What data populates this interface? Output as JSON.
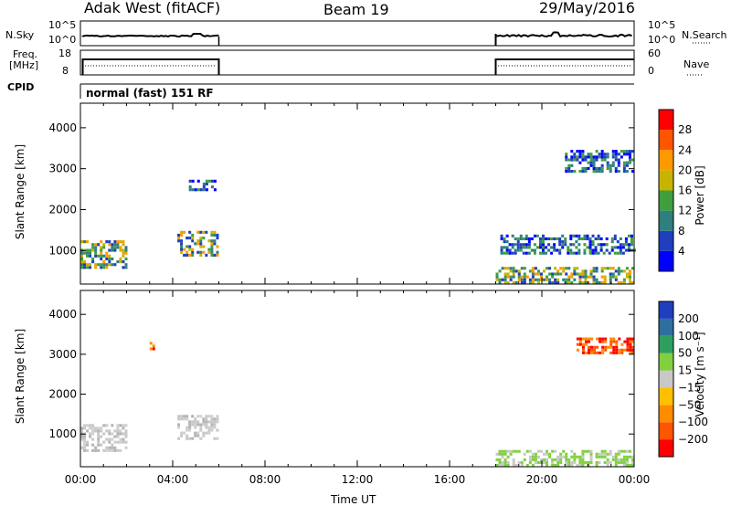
{
  "header": {
    "station": "Adak West (fitACF)",
    "beam": "Beam 19",
    "date": "29/May/2016"
  },
  "params": {
    "nsky_label": "N.Sky",
    "nsky_top": "10^5",
    "nsky_bottom": "10^0",
    "nsearch_label": "N.Search",
    "nsearch_top": "10^5",
    "nsearch_bottom": "10^0",
    "freq_label_1": "Freq.",
    "freq_label_2": "[MHz]",
    "freq_top": "18",
    "freq_bottom": "8",
    "nave_label": "Nave",
    "nave_top": "60",
    "nave_bottom": "0",
    "cpid_label": "CPID",
    "cpid_value": "normal (fast) 151 RF"
  },
  "colors": {
    "power_scale": [
      "#0000ff",
      "#1f3fbf",
      "#2f7f7f",
      "#3f9f3f",
      "#c8b400",
      "#ff9900",
      "#ff5500",
      "#ff0000"
    ],
    "velocity_scale": [
      "#ff0000",
      "#ff5500",
      "#ff8c00",
      "#ffc000",
      "#c8c8c8",
      "#80d040",
      "#2f9f5f",
      "#2f6f9f",
      "#1f3fbf"
    ]
  },
  "chart_data": [
    {
      "type": "heatmap",
      "panel": "power",
      "ylabel": "Slant Range [km]",
      "xlabel": "",
      "yticks": [
        "1000",
        "2000",
        "3000",
        "4000"
      ],
      "ylim": [
        180,
        4600
      ],
      "xlim_hours": [
        0,
        24
      ],
      "colorbar_label": "Power [dB]",
      "colorbar_ticks": [
        "4",
        "8",
        "12",
        "16",
        "20",
        "24",
        "28"
      ],
      "echo_regions": [
        {
          "t0": 0.0,
          "t1": 2.0,
          "r0": 550,
          "r1": 1200,
          "level": "mid"
        },
        {
          "t0": 4.2,
          "t1": 6.0,
          "r0": 850,
          "r1": 1450,
          "level": "mid"
        },
        {
          "t0": 4.7,
          "t1": 5.9,
          "r0": 2450,
          "r1": 2700,
          "level": "low"
        },
        {
          "t0": 18.2,
          "t1": 24.0,
          "r0": 900,
          "r1": 1350,
          "level": "low"
        },
        {
          "t0": 21.0,
          "t1": 24.0,
          "r0": 2900,
          "r1": 3400,
          "level": "low"
        },
        {
          "t0": 18.0,
          "t1": 24.0,
          "r0": 180,
          "r1": 550,
          "level": "mid"
        }
      ]
    },
    {
      "type": "heatmap",
      "panel": "velocity",
      "ylabel": "Slant Range [km]",
      "xlabel": "Time UT",
      "yticks": [
        "1000",
        "2000",
        "3000",
        "4000"
      ],
      "ylim": [
        180,
        4600
      ],
      "xticks": [
        "00:00",
        "04:00",
        "08:00",
        "12:00",
        "16:00",
        "20:00",
        "00:00"
      ],
      "xlim_hours": [
        0,
        24
      ],
      "colorbar_label": "Velocity [m s⁻¹]",
      "colorbar_ticks": [
        "200",
        "100",
        "50",
        "15",
        "−15",
        "−50",
        "−100",
        "−200"
      ],
      "echo_regions": [
        {
          "t0": 0.0,
          "t1": 2.0,
          "r0": 550,
          "r1": 1200,
          "level": "ground"
        },
        {
          "t0": 4.2,
          "t1": 6.0,
          "r0": 850,
          "r1": 1450,
          "level": "ground"
        },
        {
          "t0": 3.0,
          "t1": 3.2,
          "r0": 3100,
          "r1": 3300,
          "level": "red"
        },
        {
          "t0": 21.5,
          "t1": 24.0,
          "r0": 3000,
          "r1": 3400,
          "level": "red"
        },
        {
          "t0": 18.0,
          "t1": 24.0,
          "r0": 180,
          "r1": 550,
          "level": "green"
        }
      ]
    }
  ]
}
